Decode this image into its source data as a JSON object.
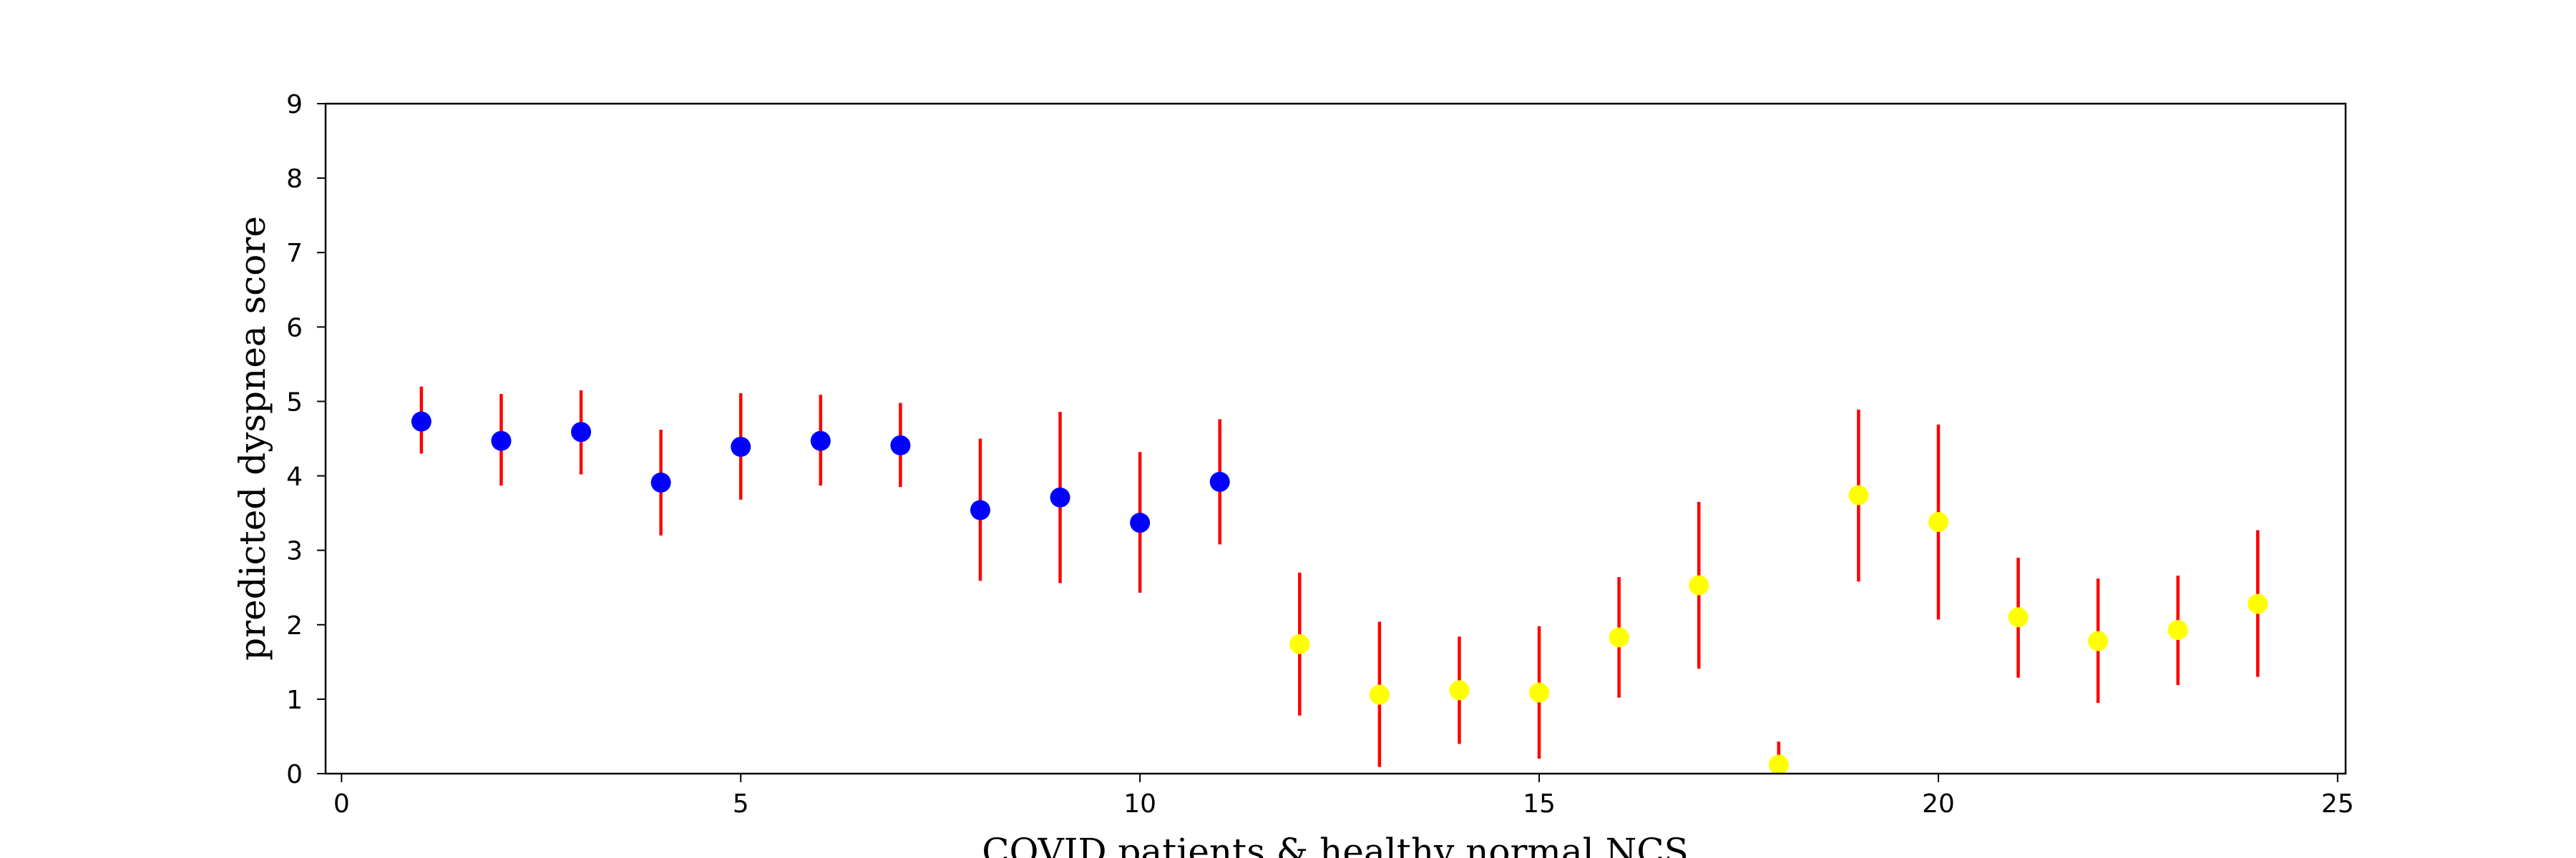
{
  "chart_data": {
    "type": "scatter",
    "title": "",
    "xlabel": "COVID patients & healthy normal NCS",
    "ylabel": "predicted dyspnea score",
    "xlim": [
      -0.2,
      25.1
    ],
    "ylim": [
      0,
      9
    ],
    "xticks": [
      0,
      5,
      10,
      15,
      20,
      25
    ],
    "yticks": [
      0,
      1,
      2,
      3,
      4,
      5,
      6,
      7,
      8,
      9
    ],
    "grid": false,
    "legend": "none",
    "errorbar_color": "#ff0000",
    "series": [
      {
        "color": "#0000ff",
        "points": [
          {
            "x": 1,
            "y": 4.73,
            "low": 4.3,
            "high": 5.2
          },
          {
            "x": 2,
            "y": 4.47,
            "low": 3.87,
            "high": 5.1
          },
          {
            "x": 3,
            "y": 4.59,
            "low": 4.02,
            "high": 5.15
          },
          {
            "x": 4,
            "y": 3.91,
            "low": 3.2,
            "high": 4.62
          },
          {
            "x": 5,
            "y": 4.39,
            "low": 3.68,
            "high": 5.11
          },
          {
            "x": 6,
            "y": 4.47,
            "low": 3.87,
            "high": 5.09
          },
          {
            "x": 7,
            "y": 4.41,
            "low": 3.85,
            "high": 4.98
          },
          {
            "x": 8,
            "y": 3.54,
            "low": 2.59,
            "high": 4.5
          },
          {
            "x": 9,
            "y": 3.71,
            "low": 2.56,
            "high": 4.86
          },
          {
            "x": 10,
            "y": 3.37,
            "low": 2.43,
            "high": 4.32
          },
          {
            "x": 11,
            "y": 3.92,
            "low": 3.08,
            "high": 4.76
          }
        ]
      },
      {
        "color": "#ffff00",
        "points": [
          {
            "x": 12,
            "y": 1.74,
            "low": 0.78,
            "high": 2.7
          },
          {
            "x": 13,
            "y": 1.06,
            "low": 0.09,
            "high": 2.04
          },
          {
            "x": 14,
            "y": 1.12,
            "low": 0.4,
            "high": 1.84
          },
          {
            "x": 15,
            "y": 1.09,
            "low": 0.2,
            "high": 1.98
          },
          {
            "x": 16,
            "y": 1.83,
            "low": 1.02,
            "high": 2.64
          },
          {
            "x": 17,
            "y": 2.53,
            "low": 1.41,
            "high": 3.65
          },
          {
            "x": 18,
            "y": 0.12,
            "low": 0.0,
            "high": 0.43
          },
          {
            "x": 19,
            "y": 3.74,
            "low": 2.58,
            "high": 4.89
          },
          {
            "x": 20,
            "y": 3.38,
            "low": 2.07,
            "high": 4.69
          },
          {
            "x": 21,
            "y": 2.1,
            "low": 1.29,
            "high": 2.9
          },
          {
            "x": 22,
            "y": 1.78,
            "low": 0.95,
            "high": 2.62
          },
          {
            "x": 23,
            "y": 1.93,
            "low": 1.19,
            "high": 2.66
          },
          {
            "x": 24,
            "y": 2.28,
            "low": 1.3,
            "high": 3.27
          }
        ]
      }
    ]
  }
}
